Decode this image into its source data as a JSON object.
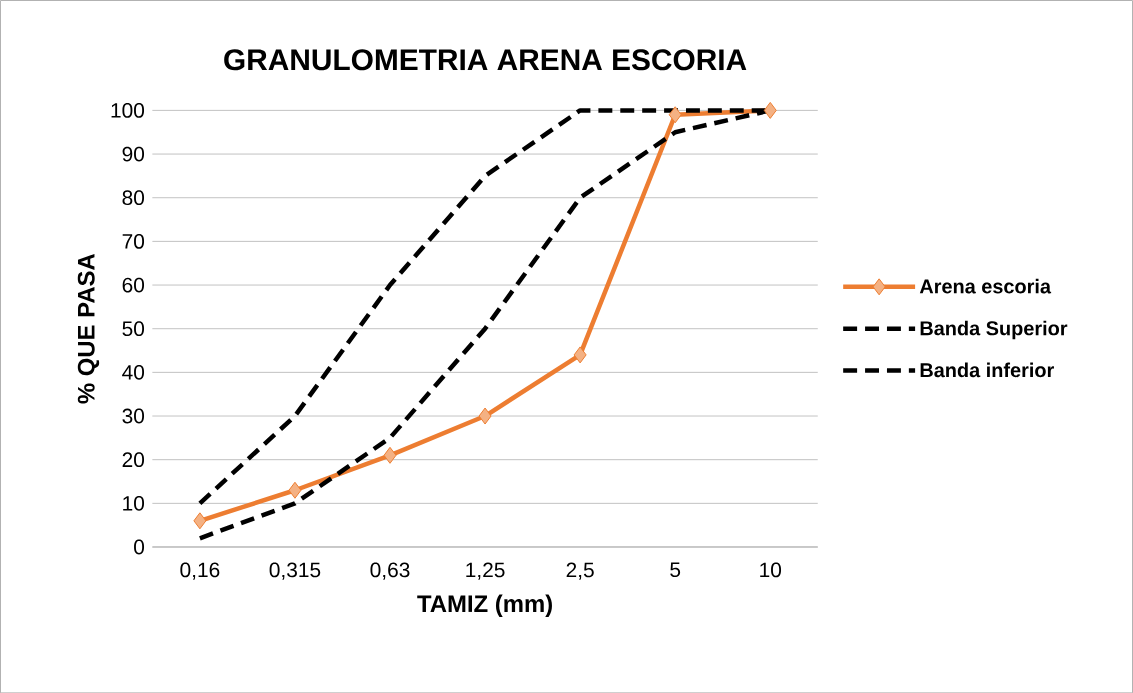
{
  "chart_data": {
    "type": "line",
    "title": "GRANULOMETRIA ARENA ESCORIA",
    "xlabel": "TAMIZ (mm)",
    "ylabel": "% QUE PASA",
    "categories": [
      "0,16",
      "0,315",
      "0,63",
      "1,25",
      "2,5",
      "5",
      "10"
    ],
    "series": [
      {
        "name": "Arena escoria",
        "color": "#ed7d31",
        "values": [
          6,
          13,
          21,
          30,
          44,
          99,
          100
        ],
        "marker": "diamond",
        "line_style": "solid"
      },
      {
        "name": "Banda Superior",
        "color": "#000000",
        "values": [
          10,
          30,
          60,
          85,
          100,
          100,
          100
        ],
        "marker": "none",
        "line_style": "dashed"
      },
      {
        "name": "Banda inferior",
        "color": "#000000",
        "values": [
          2,
          10,
          25,
          50,
          80,
          95,
          100
        ],
        "marker": "none",
        "line_style": "dashed"
      }
    ],
    "ylim": [
      0,
      100
    ],
    "yticks": [
      0,
      10,
      20,
      30,
      40,
      50,
      60,
      70,
      80,
      90,
      100
    ],
    "grid": "y",
    "legend": "right"
  }
}
